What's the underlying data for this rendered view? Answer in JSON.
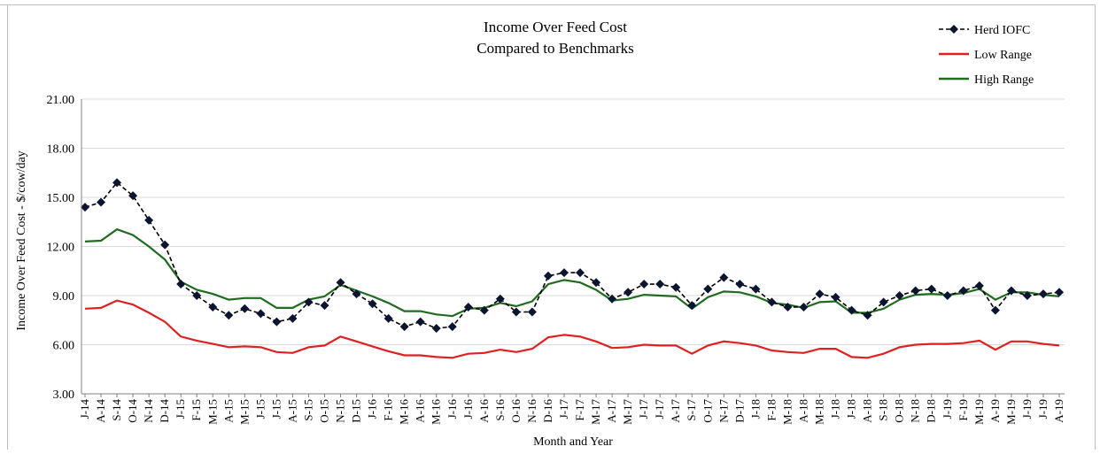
{
  "chart_data": {
    "type": "line",
    "title": [
      "Income Over Feed Cost",
      "Compared to Benchmarks"
    ],
    "xlabel": "Month and Year",
    "ylabel": "Income Over Feed Cost - $/cow/day",
    "ylim": [
      3.0,
      21.0
    ],
    "yticks": [
      "3.00",
      "6.00",
      "9.00",
      "12.00",
      "15.00",
      "18.00",
      "21.00"
    ],
    "grid": "horizontal",
    "legend_position": "top-right",
    "categories": [
      "J-14",
      "A-14",
      "S-14",
      "O-14",
      "N-14",
      "D-14",
      "J-15",
      "F-15",
      "M-15",
      "A-15",
      "M-15",
      "J-15",
      "J-15",
      "A-15",
      "S-15",
      "O-15",
      "N-15",
      "D-15",
      "J-16",
      "F-16",
      "M-16",
      "A-16",
      "M-16",
      "J-16",
      "J-16",
      "A-16",
      "S-16",
      "O-16",
      "N-16",
      "D-16",
      "J-17",
      "F-17",
      "M-17",
      "A-17",
      "M-17",
      "J-17",
      "J-17",
      "A-17",
      "S-17",
      "O-17",
      "N-17",
      "D-17",
      "J-18",
      "F-18",
      "M-18",
      "A-18",
      "M-18",
      "J-18",
      "J-18",
      "A-18",
      "S-18",
      "O-18",
      "N-18",
      "D-18",
      "J-19",
      "F-19",
      "M-19",
      "A-19",
      "M-19",
      "J-19",
      "J-19",
      "A-19"
    ],
    "series": [
      {
        "name": "Herd IOFC",
        "color": "#000000",
        "style": "dashed-diamond",
        "values": [
          14.4,
          14.7,
          15.9,
          15.1,
          13.6,
          12.1,
          9.7,
          9.0,
          8.3,
          7.8,
          8.2,
          7.9,
          7.4,
          7.6,
          8.6,
          8.4,
          9.8,
          9.1,
          8.5,
          7.6,
          7.1,
          7.4,
          7.0,
          7.1,
          8.3,
          8.1,
          8.8,
          8.0,
          8.0,
          10.2,
          10.4,
          10.4,
          9.8,
          8.8,
          9.2,
          9.7,
          9.7,
          9.5,
          8.4,
          9.4,
          10.1,
          9.7,
          9.4,
          8.6,
          8.3,
          8.3,
          9.1,
          8.9,
          8.1,
          7.8,
          8.6,
          9.0,
          9.3,
          9.4,
          9.0,
          9.3,
          9.6,
          8.1,
          9.3,
          9.0,
          9.1,
          9.2
        ]
      },
      {
        "name": "Low Range",
        "color": "#e02020",
        "style": "solid",
        "values": [
          8.2,
          8.25,
          8.7,
          8.45,
          7.95,
          7.4,
          6.5,
          6.25,
          6.05,
          5.85,
          5.9,
          5.85,
          5.55,
          5.5,
          5.85,
          5.95,
          6.5,
          6.2,
          5.9,
          5.6,
          5.35,
          5.35,
          5.25,
          5.2,
          5.45,
          5.5,
          5.7,
          5.55,
          5.75,
          6.45,
          6.6,
          6.5,
          6.2,
          5.8,
          5.85,
          6.0,
          5.95,
          5.95,
          5.45,
          5.95,
          6.2,
          6.1,
          5.95,
          5.65,
          5.55,
          5.5,
          5.75,
          5.75,
          5.25,
          5.2,
          5.45,
          5.85,
          6.0,
          6.05,
          6.05,
          6.1,
          6.25,
          5.7,
          6.2,
          6.2,
          6.05,
          5.95
        ]
      },
      {
        "name": "High Range",
        "color": "#1f6b1f",
        "style": "solid",
        "values": [
          12.3,
          12.35,
          13.05,
          12.7,
          12.0,
          11.2,
          9.85,
          9.35,
          9.1,
          8.75,
          8.85,
          8.85,
          8.25,
          8.25,
          8.75,
          8.95,
          9.65,
          9.3,
          8.95,
          8.55,
          8.05,
          8.05,
          7.85,
          7.75,
          8.2,
          8.25,
          8.55,
          8.35,
          8.65,
          9.7,
          9.95,
          9.8,
          9.35,
          8.7,
          8.8,
          9.05,
          9.0,
          8.95,
          8.2,
          8.9,
          9.25,
          9.2,
          8.95,
          8.55,
          8.45,
          8.25,
          8.6,
          8.65,
          7.95,
          7.95,
          8.2,
          8.75,
          9.05,
          9.1,
          9.05,
          9.15,
          9.4,
          8.75,
          9.2,
          9.2,
          9.05,
          8.95
        ]
      }
    ]
  }
}
